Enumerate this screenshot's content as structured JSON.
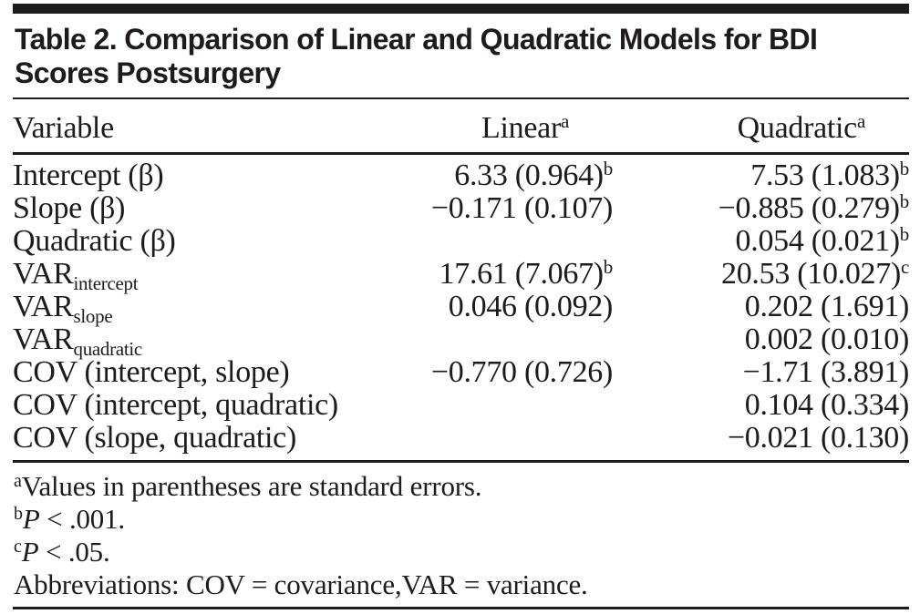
{
  "page": {
    "background": "#ffffff",
    "text_color": "#1f1b1c",
    "rule_color": "#1f1b1c"
  },
  "table": {
    "title_lines": [
      "Table 2. Comparison of Linear and Quadratic Models for BDI",
      "Scores Postsurgery"
    ],
    "columns": [
      {
        "label": "Variable",
        "sup": ""
      },
      {
        "label": "Linear",
        "sup": "a"
      },
      {
        "label": "Quadratic",
        "sup": "a"
      }
    ],
    "rows": [
      {
        "label": "Intercept (β)",
        "label_sub": "",
        "linear": "6.33 (0.964)",
        "linear_sup": "b",
        "quadratic": "7.53 (1.083)",
        "quadratic_sup": "b"
      },
      {
        "label": "Slope (β)",
        "label_sub": "",
        "linear": "−0.171 (0.107)",
        "linear_sup": "",
        "quadratic": "−0.885 (0.279)",
        "quadratic_sup": "b"
      },
      {
        "label": "Quadratic (β)",
        "label_sub": "",
        "linear": "",
        "linear_sup": "",
        "quadratic": "0.054 (0.021)",
        "quadratic_sup": "b"
      },
      {
        "label": "VAR",
        "label_sub": "intercept",
        "linear": "17.61 (7.067)",
        "linear_sup": "b",
        "quadratic": "20.53 (10.027)",
        "quadratic_sup": "c"
      },
      {
        "label": "VAR",
        "label_sub": "slope",
        "linear": "0.046 (0.092)",
        "linear_sup": "",
        "quadratic": "0.202 (1.691)",
        "quadratic_sup": ""
      },
      {
        "label": "VAR",
        "label_sub": "quadratic",
        "linear": "",
        "linear_sup": "",
        "quadratic": "0.002 (0.010)",
        "quadratic_sup": ""
      },
      {
        "label": "COV (intercept, slope)",
        "label_sub": "",
        "linear": "−0.770 (0.726)",
        "linear_sup": "",
        "quadratic": "−1.71 (3.891)",
        "quadratic_sup": ""
      },
      {
        "label": "COV (intercept, quadratic)",
        "label_sub": "",
        "linear": "",
        "linear_sup": "",
        "quadratic": "0.104 (0.334)",
        "quadratic_sup": ""
      },
      {
        "label": "COV (slope, quadratic)",
        "label_sub": "",
        "linear": "",
        "linear_sup": "",
        "quadratic": "−0.021 (0.130)",
        "quadratic_sup": ""
      }
    ],
    "footnotes": [
      {
        "marker": "a",
        "italic": "",
        "text": "Values in parentheses are standard errors."
      },
      {
        "marker": "b",
        "italic": "P",
        "text": " < .001."
      },
      {
        "marker": "c",
        "italic": "P",
        "text": " < .05."
      },
      {
        "marker": "",
        "italic": "",
        "text": "Abbreviations: COV = covariance,VAR = variance."
      }
    ]
  }
}
